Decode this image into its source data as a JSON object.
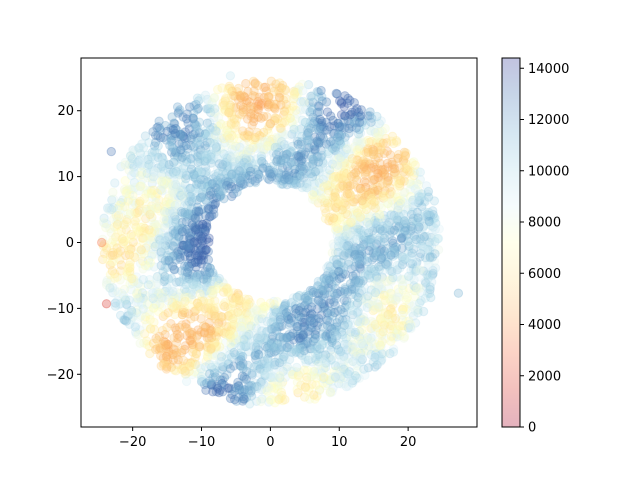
{
  "chart_data": {
    "type": "scatter",
    "title": "",
    "xlabel": "",
    "ylabel": "",
    "xlim": [
      -27.5,
      30
    ],
    "ylim": [
      -28,
      28
    ],
    "x_ticks": [
      -20,
      -10,
      0,
      10,
      20
    ],
    "y_ticks": [
      -20,
      -10,
      0,
      10,
      20
    ],
    "grid": false,
    "marker": "circle",
    "alpha": 0.3,
    "colormap": "RdYlBu",
    "colorbar": {
      "range": [
        0,
        14400
      ],
      "ticks": [
        0,
        2000,
        4000,
        6000,
        8000,
        10000,
        12000,
        14000
      ]
    },
    "points_description": "about 4000 semi-transparent points forming a ring (annulus) centred at (0, 0), inner radius about 9 and outer radius about 24; colour value from 0 to about 14400 varies in patches around the ring",
    "ring": {
      "center": [
        0,
        0
      ],
      "inner_radius": 9,
      "outer_radius": 24.5,
      "n_points": 4000,
      "value_max": 14400
    },
    "outliers": [
      {
        "x": 27.3,
        "y": -7.7,
        "value": 11500
      },
      {
        "x": -24.5,
        "y": 0.0,
        "value": 3000
      },
      {
        "x": -23.8,
        "y": -9.3,
        "value": 1500
      },
      {
        "x": -23.1,
        "y": 13.8,
        "value": 13000
      },
      {
        "x": -5.8,
        "y": 25.3,
        "value": 9500
      }
    ],
    "colors": {
      "low": "#a50026",
      "mid": "#ffffbf",
      "high": "#313695"
    }
  }
}
